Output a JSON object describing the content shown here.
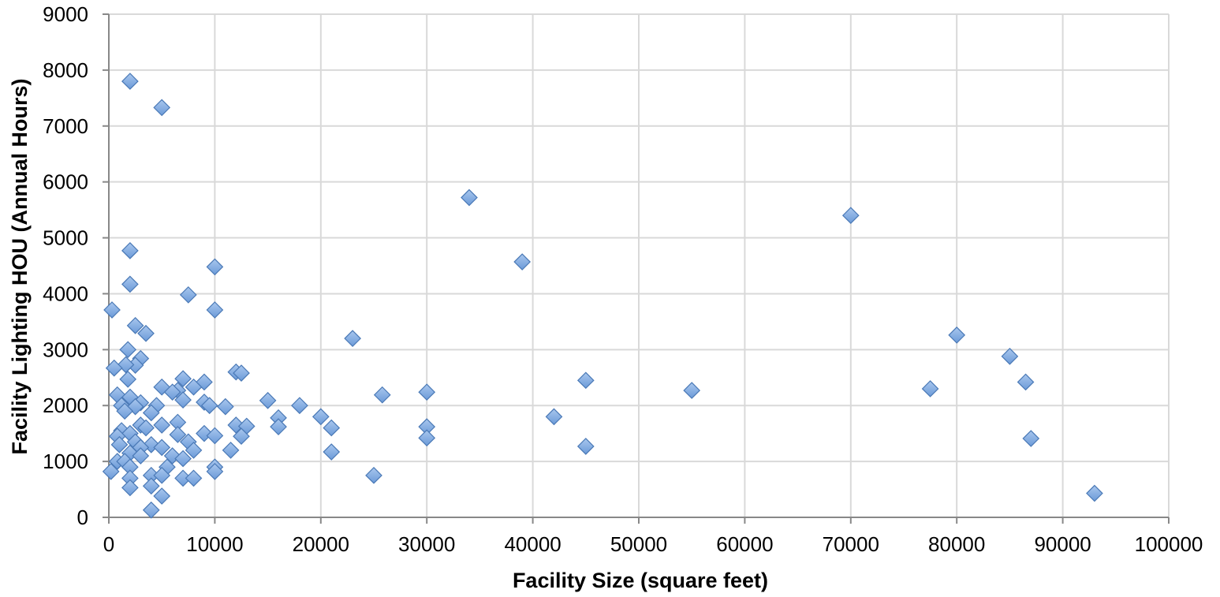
{
  "chart_data": {
    "type": "scatter",
    "title": "",
    "xlabel": "Facility Size (square feet)",
    "ylabel": "Facility Lighting HOU (Annual Hours)",
    "xlim": [
      0,
      100000
    ],
    "ylim": [
      0,
      9000
    ],
    "x_ticks": [
      0,
      10000,
      20000,
      30000,
      40000,
      50000,
      60000,
      70000,
      80000,
      90000,
      100000
    ],
    "y_ticks": [
      0,
      1000,
      2000,
      3000,
      4000,
      5000,
      6000,
      7000,
      8000,
      9000
    ],
    "grid": true,
    "legend": "none",
    "colors": {
      "marker_fill": "#7ba7dd",
      "marker_stroke": "#4a79b6",
      "grid": "#d9d9d9",
      "axis": "#888888"
    },
    "series": [
      {
        "marker": "diamond",
        "points": [
          [
            2000,
            7800
          ],
          [
            5000,
            7330
          ],
          [
            34000,
            5720
          ],
          [
            70000,
            5400
          ],
          [
            39000,
            4570
          ],
          [
            2000,
            4770
          ],
          [
            10000,
            4480
          ],
          [
            2000,
            4170
          ],
          [
            7500,
            3980
          ],
          [
            300,
            3710
          ],
          [
            10000,
            3710
          ],
          [
            2500,
            3430
          ],
          [
            3500,
            3290
          ],
          [
            23000,
            3200
          ],
          [
            80000,
            3260
          ],
          [
            85000,
            2880
          ],
          [
            1800,
            3000
          ],
          [
            3000,
            2840
          ],
          [
            2500,
            2720
          ],
          [
            1600,
            2730
          ],
          [
            500,
            2670
          ],
          [
            12000,
            2600
          ],
          [
            12500,
            2580
          ],
          [
            1800,
            2470
          ],
          [
            7000,
            2480
          ],
          [
            9000,
            2420
          ],
          [
            45000,
            2450
          ],
          [
            86500,
            2420
          ],
          [
            5000,
            2330
          ],
          [
            8000,
            2330
          ],
          [
            6500,
            2270
          ],
          [
            55000,
            2270
          ],
          [
            77500,
            2300
          ],
          [
            30000,
            2240
          ],
          [
            6000,
            2240
          ],
          [
            25800,
            2190
          ],
          [
            800,
            2190
          ],
          [
            2000,
            2150
          ],
          [
            7000,
            2100
          ],
          [
            15000,
            2090
          ],
          [
            9000,
            2060
          ],
          [
            3000,
            2050
          ],
          [
            1200,
            2000
          ],
          [
            4500,
            2000
          ],
          [
            9500,
            2000
          ],
          [
            11000,
            1980
          ],
          [
            18000,
            2000
          ],
          [
            2500,
            1980
          ],
          [
            1500,
            1900
          ],
          [
            4000,
            1870
          ],
          [
            20000,
            1800
          ],
          [
            42000,
            1800
          ],
          [
            16000,
            1780
          ],
          [
            3000,
            1650
          ],
          [
            5000,
            1650
          ],
          [
            6500,
            1700
          ],
          [
            12000,
            1650
          ],
          [
            13000,
            1630
          ],
          [
            16000,
            1620
          ],
          [
            21000,
            1600
          ],
          [
            30000,
            1620
          ],
          [
            1200,
            1550
          ],
          [
            3500,
            1600
          ],
          [
            2000,
            1500
          ],
          [
            800,
            1450
          ],
          [
            6500,
            1480
          ],
          [
            9000,
            1500
          ],
          [
            10000,
            1460
          ],
          [
            12500,
            1450
          ],
          [
            7500,
            1350
          ],
          [
            30000,
            1420
          ],
          [
            87000,
            1410
          ],
          [
            2500,
            1350
          ],
          [
            4000,
            1300
          ],
          [
            5000,
            1250
          ],
          [
            1000,
            1300
          ],
          [
            3000,
            1250
          ],
          [
            45000,
            1270
          ],
          [
            8000,
            1200
          ],
          [
            11500,
            1200
          ],
          [
            21000,
            1170
          ],
          [
            2000,
            1150
          ],
          [
            3000,
            1100
          ],
          [
            6000,
            1100
          ],
          [
            7000,
            1050
          ],
          [
            800,
            1000
          ],
          [
            1500,
            1000
          ],
          [
            2000,
            900
          ],
          [
            5500,
            900
          ],
          [
            10000,
            900
          ],
          [
            200,
            820
          ],
          [
            10000,
            820
          ],
          [
            4000,
            750
          ],
          [
            25000,
            750
          ],
          [
            5000,
            750
          ],
          [
            2000,
            700
          ],
          [
            7000,
            700
          ],
          [
            8000,
            700
          ],
          [
            4000,
            560
          ],
          [
            2000,
            530
          ],
          [
            5000,
            380
          ],
          [
            4000,
            130
          ],
          [
            93000,
            430
          ]
        ]
      }
    ]
  }
}
